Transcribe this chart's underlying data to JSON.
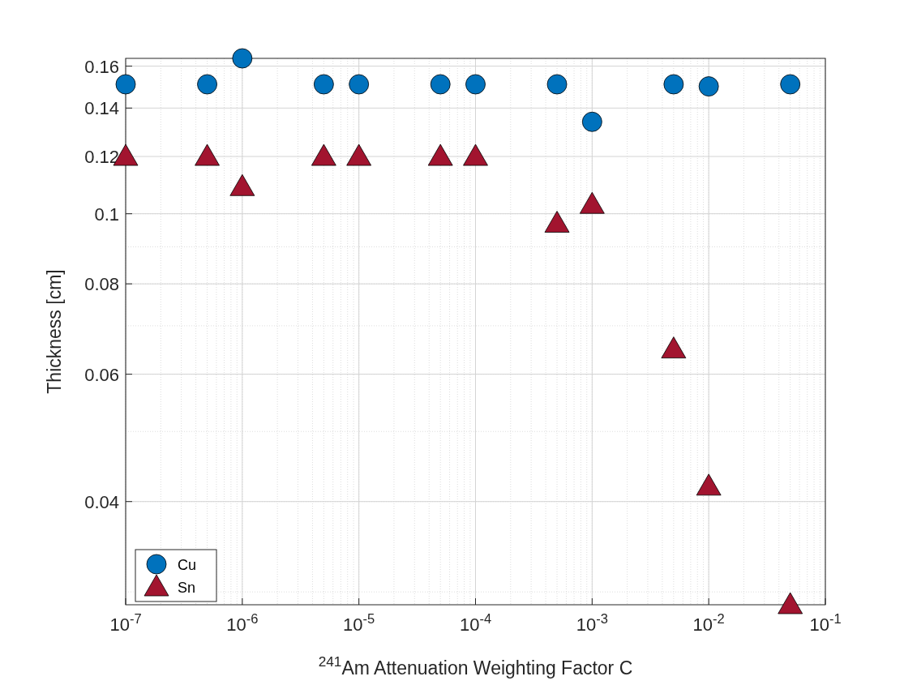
{
  "chart_data": {
    "type": "scatter",
    "xlabel": "$^{241}$Am Attenuation Weighting Factor C",
    "ylabel": "Thickness [cm]",
    "log": "xy",
    "grid": true,
    "legend": "bottom left",
    "xlim": [
      1e-07,
      0.1
    ],
    "ylim": [
      0.0288,
      0.164
    ],
    "xticks": [
      {
        "value": 1e-07,
        "label": "10$^{-7}$"
      },
      {
        "value": 1e-06,
        "label": "10$^{-6}$"
      },
      {
        "value": 1e-05,
        "label": "10$^{-5}$"
      },
      {
        "value": 0.0001,
        "label": "10$^{-4}$"
      },
      {
        "value": 0.001,
        "label": "10$^{-3}$"
      },
      {
        "value": 0.01,
        "label": "10$^{-2}$"
      },
      {
        "value": 0.1,
        "label": "10$^{-1}$"
      }
    ],
    "yticks": [
      0.04,
      0.06,
      0.08,
      0.1,
      0.12,
      0.14,
      0.16
    ],
    "x": [
      1e-07,
      5e-07,
      1e-06,
      5e-06,
      1e-05,
      5e-05,
      0.0001,
      0.0005,
      0.001,
      0.005,
      0.01,
      0.05
    ],
    "series": [
      {
        "name": "Cu",
        "color": "#0072bd",
        "marker": "circle",
        "values": [
          0.151,
          0.151,
          0.164,
          0.151,
          0.151,
          0.151,
          0.151,
          0.151,
          0.134,
          0.151,
          0.15,
          0.151
        ]
      },
      {
        "name": "Sn",
        "color": "#a2142f",
        "marker": "triangle",
        "values": [
          0.12,
          0.12,
          0.109,
          0.12,
          0.12,
          0.12,
          0.12,
          0.097,
          0.103,
          0.065,
          0.042,
          0.0288
        ]
      }
    ]
  }
}
